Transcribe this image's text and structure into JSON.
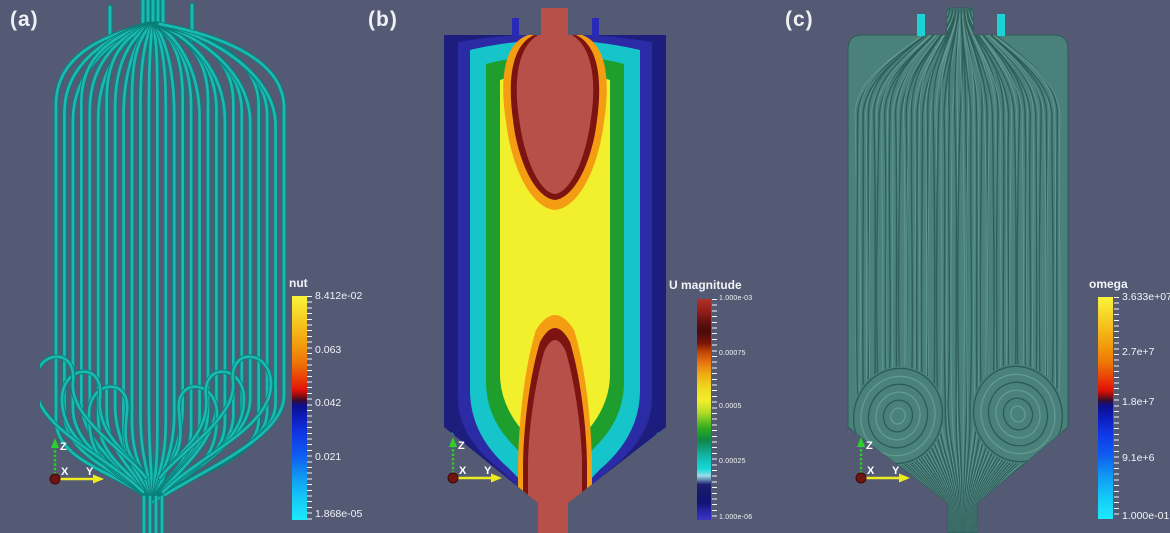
{
  "figure": {
    "background_color": "#545a74",
    "orientation_axes": {
      "x": "X",
      "y": "Y",
      "z": "Z"
    },
    "colors": {
      "streamtube_teal": "#1ab9b1",
      "streamtube_shadow": "#0b7f79",
      "lic_base": "#4a817b",
      "lic_dark": "#2c5b57",
      "lic_light": "#639b93",
      "tube_cyan": "#1bd3d5",
      "inlet_red": "#b8504a",
      "domain_navy": "#1d1d7e"
    },
    "panels": [
      {
        "id": "a",
        "label": "(a)",
        "view": "turbulent viscosity streamtubes",
        "legend": {
          "title": "nut",
          "tick_labels": [
            "8.412e-02",
            "0.063",
            "0.042",
            "0.021",
            "1.868e-05"
          ],
          "colormap": [
            "#f9f53b 0%",
            "#f7cd24 10%",
            "#f2a00d 21%",
            "#ee7307 30%",
            "#ea3b07 37%",
            "#de1207 42%",
            "#8f0d10 44.5%",
            "#3a0d2e 46.5%",
            "#0c0f8e 49%",
            "#0d1fc0 55%",
            "#1038e8 62%",
            "#0e5cf0 71%",
            "#10a0f4 82%",
            "#15ccf7 91%",
            "#1deafb 100%"
          ]
        }
      },
      {
        "id": "b",
        "label": "(b)",
        "view": "velocity magnitude contour slice",
        "legend": {
          "title": "U magnitude",
          "tick_labels": [
            "1.000e-03",
            "0.00075",
            "0.0005",
            "0.00025",
            "1.000e-06"
          ],
          "colormap": [
            "#b03127 0%",
            "#8e1c18 6%",
            "#5e100f 11%",
            "#4a0b0c 15%",
            "#7c1507 20%",
            "#c24708 24%",
            "#e87710 29%",
            "#f0a913 34%",
            "#f0d81e 40%",
            "#f2ee2a 46%",
            "#b8dd26 51%",
            "#6cc322 55%",
            "#27a81e 59%",
            "#108746 64%",
            "#10a183 68%",
            "#13c3bb 73%",
            "#18d8d8 77%",
            "#9adce8 80%",
            "#1d1d6a 84%",
            "#121274 92%",
            "#2a2ab0 97%",
            "#4033c4 100%"
          ]
        }
      },
      {
        "id": "c",
        "label": "(c)",
        "view": "omega surface LIC",
        "legend": {
          "title": "omega",
          "tick_labels": [
            "3.633e+07",
            "2.7e+7",
            "1.8e+7",
            "9.1e+6",
            "1.000e-01"
          ],
          "colormap": [
            "#f9f53b 0%",
            "#f7cd24 10%",
            "#f2a00d 21%",
            "#ee7307 30%",
            "#ea3b07 37%",
            "#de1207 42%",
            "#8f0d10 44.5%",
            "#3a0d2e 46.5%",
            "#0c0f8e 49%",
            "#0d1fc0 55%",
            "#1038e8 62%",
            "#0e5cf0 71%",
            "#10a0f4 82%",
            "#15ccf7 91%",
            "#1deafb 100%"
          ]
        }
      }
    ]
  }
}
